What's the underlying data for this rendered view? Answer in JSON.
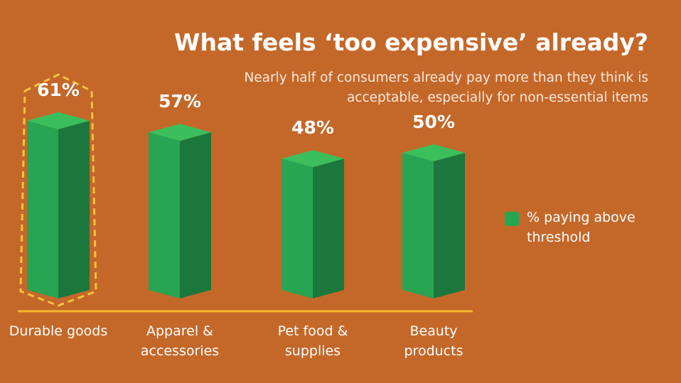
{
  "chart_data": {
    "type": "bar3d",
    "title": "What feels ‘too expensive’ already?",
    "subtitle": "Nearly half of consumers already pay more than they think is acceptable, especially for non-essential items",
    "categories": [
      "Durable goods",
      "Apparel & accessories",
      "Pet food & supplies",
      "Beauty products"
    ],
    "series": [
      {
        "name": "% paying above threshold",
        "color": "#27a553",
        "values": [
          61,
          57,
          48,
          50
        ],
        "value_labels": [
          "61%",
          "57%",
          "48%",
          "50%"
        ]
      }
    ],
    "legend": "right"
  }
}
